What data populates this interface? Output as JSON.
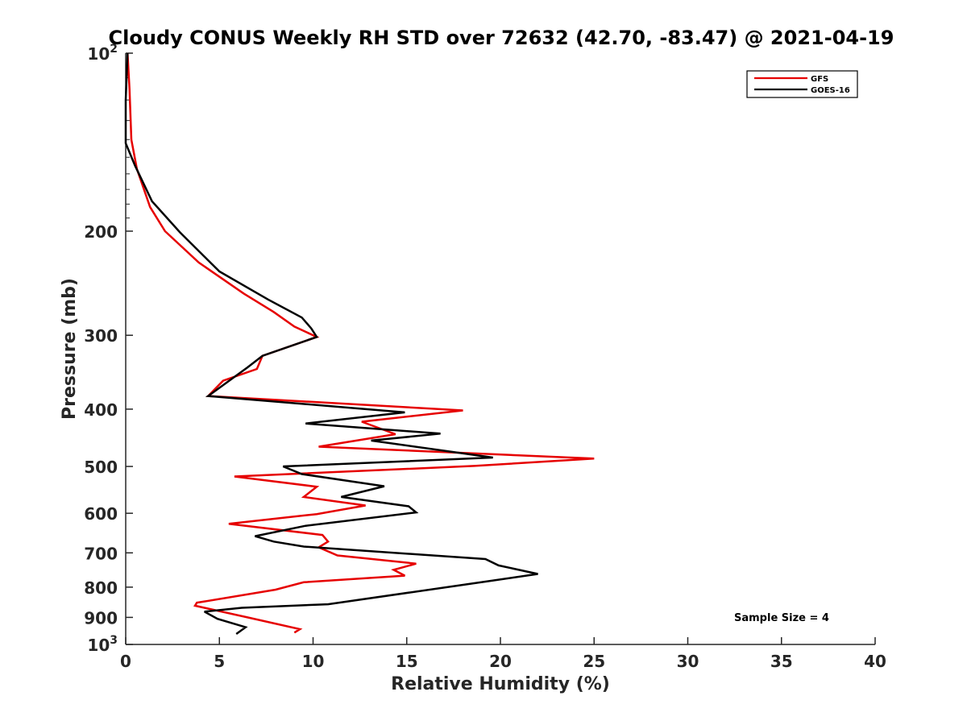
{
  "chart_data": {
    "type": "line",
    "title": "Cloudy CONUS Weekly RH STD over 72632 (42.70, -83.47) @ 2021-04-19",
    "xlabel": "Relative Humidity (%)",
    "ylabel": "Pressure (mb)",
    "xlim": [
      0,
      40
    ],
    "ylim": [
      100,
      1000
    ],
    "y_scale": "log",
    "y_reversed": true,
    "x_ticks": [
      "0",
      "5",
      "10",
      "15",
      "20",
      "25",
      "30",
      "35",
      "40"
    ],
    "y_ticks": [
      {
        "value": 100,
        "base": "10",
        "exp": "2"
      },
      {
        "value": 200,
        "label": "200"
      },
      {
        "value": 300,
        "label": "300"
      },
      {
        "value": 400,
        "label": "400"
      },
      {
        "value": 500,
        "label": "500"
      },
      {
        "value": 600,
        "label": "600"
      },
      {
        "value": 700,
        "label": "700"
      },
      {
        "value": 800,
        "label": "800"
      },
      {
        "value": 900,
        "label": "900"
      },
      {
        "value": 1000,
        "base": "10",
        "exp": "3"
      }
    ],
    "grid": false,
    "legend_position": "top-right",
    "series": [
      {
        "name": "GFS",
        "color": "#e60000",
        "points": [
          [
            0.1,
            100
          ],
          [
            0.2,
            115
          ],
          [
            0.3,
            140
          ],
          [
            0.6,
            157
          ],
          [
            1.3,
            182
          ],
          [
            2.1,
            200
          ],
          [
            3.9,
            226
          ],
          [
            6.3,
            255
          ],
          [
            7.9,
            274
          ],
          [
            9.0,
            290
          ],
          [
            10.2,
            302
          ],
          [
            7.3,
            325
          ],
          [
            7.0,
            342
          ],
          [
            5.2,
            358
          ],
          [
            4.4,
            380
          ],
          [
            18.0,
            402
          ],
          [
            12.6,
            420
          ],
          [
            14.4,
            441
          ],
          [
            10.3,
            463
          ],
          [
            25.0,
            485
          ],
          [
            18.6,
            499
          ],
          [
            5.8,
            520
          ],
          [
            10.2,
            541
          ],
          [
            9.5,
            563
          ],
          [
            12.8,
            582
          ],
          [
            10.2,
            602
          ],
          [
            5.5,
            625
          ],
          [
            10.5,
            653
          ],
          [
            10.8,
            670
          ],
          [
            10.3,
            685
          ],
          [
            11.3,
            707
          ],
          [
            15.5,
            730
          ],
          [
            14.3,
            748
          ],
          [
            14.9,
            765
          ],
          [
            9.5,
            785
          ],
          [
            8.0,
            808
          ],
          [
            3.8,
            850
          ],
          [
            3.7,
            860
          ],
          [
            6.5,
            900
          ],
          [
            9.3,
            942
          ],
          [
            9.0,
            955
          ]
        ]
      },
      {
        "name": "GOES-16",
        "color": "#000000",
        "points": [
          [
            0.1,
            100
          ],
          [
            0.0,
            120
          ],
          [
            0.0,
            142
          ],
          [
            0.5,
            155
          ],
          [
            1.4,
            178
          ],
          [
            2.9,
            201
          ],
          [
            5.0,
            234
          ],
          [
            7.6,
            261
          ],
          [
            9.4,
            280
          ],
          [
            9.9,
            292
          ],
          [
            10.2,
            302
          ],
          [
            7.3,
            325
          ],
          [
            6.5,
            340
          ],
          [
            4.4,
            380
          ],
          [
            14.9,
            405
          ],
          [
            9.6,
            423
          ],
          [
            16.8,
            440
          ],
          [
            13.1,
            452
          ],
          [
            19.6,
            483
          ],
          [
            8.4,
            500
          ],
          [
            9.4,
            515
          ],
          [
            13.8,
            540
          ],
          [
            11.5,
            563
          ],
          [
            15.1,
            584
          ],
          [
            15.5,
            598
          ],
          [
            9.6,
            630
          ],
          [
            6.9,
            656
          ],
          [
            7.9,
            670
          ],
          [
            9.5,
            683
          ],
          [
            19.2,
            717
          ],
          [
            19.9,
            735
          ],
          [
            22.0,
            760
          ],
          [
            19.2,
            783
          ],
          [
            10.8,
            855
          ],
          [
            6.2,
            867
          ],
          [
            4.2,
            880
          ],
          [
            4.9,
            905
          ],
          [
            6.4,
            935
          ],
          [
            5.9,
            960
          ]
        ]
      }
    ],
    "annotation": "Sample Size = 4"
  }
}
